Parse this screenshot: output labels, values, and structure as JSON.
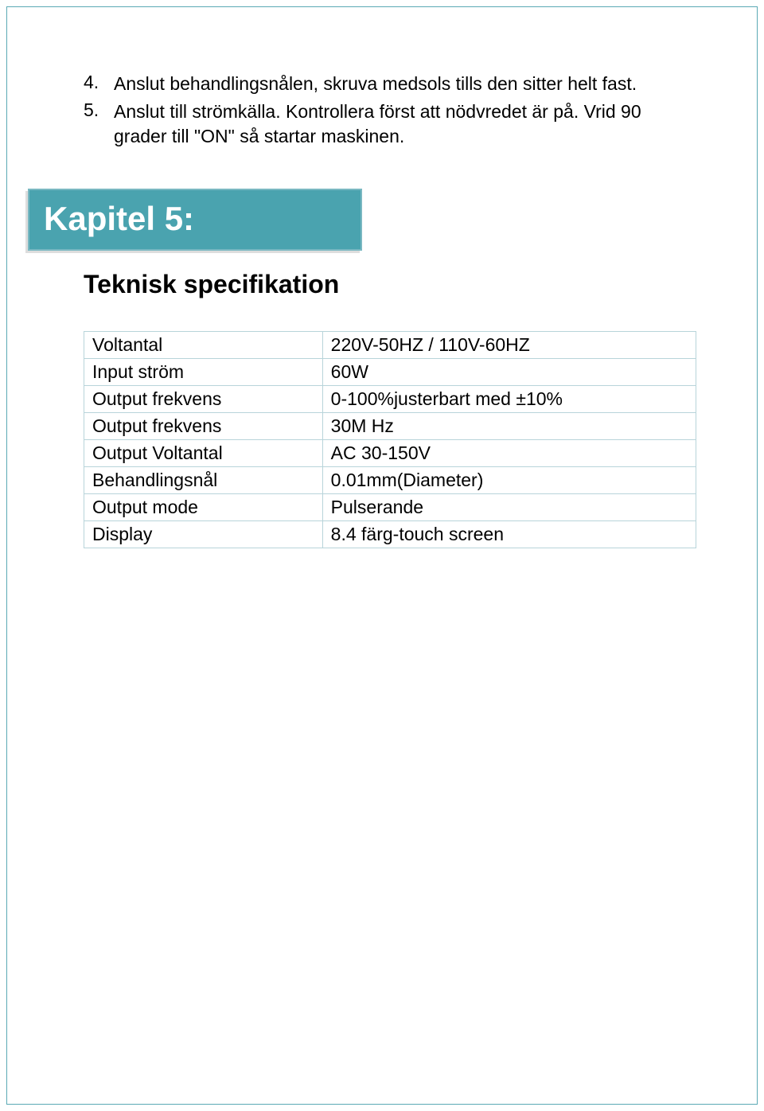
{
  "page": {
    "border_color": "#5aa9b5",
    "background_color": "#ffffff"
  },
  "list_items": [
    {
      "num": "4.",
      "text": "Anslut behandlingsnålen, skruva medsols tills den sitter helt fast."
    },
    {
      "num": "5.",
      "text": "Anslut till strömkälla. Kontrollera först att nödvredet är på. Vrid 90 grader till \"ON\" så startar maskinen."
    }
  ],
  "chapter": {
    "label": "Kapitel 5:",
    "bg_color": "#4aa3af",
    "border_color": "#7ab8c2",
    "text_color": "#ffffff",
    "fontsize": 42
  },
  "section": {
    "title": "Teknisk specifikation",
    "fontsize": 32
  },
  "spec_table": {
    "border_color": "#b8d4da",
    "text_color": "#000000",
    "cell_fontsize": 23,
    "label_col_width": 300,
    "value_col_width": 470,
    "rows": [
      {
        "label": "Voltantal",
        "value": "220V-50HZ / 110V-60HZ"
      },
      {
        "label": "Input ström",
        "value": "60W"
      },
      {
        "label": "Output frekvens",
        "value": "0-100%justerbart med ±10%"
      },
      {
        "label": "Output frekvens",
        "value": "30M Hz"
      },
      {
        "label": "Output Voltantal",
        "value": "AC 30-150V"
      },
      {
        "label": "Behandlingsnål",
        "value": "0.01mm(Diameter)"
      },
      {
        "label": "Output mode",
        "value": "Pulserande"
      },
      {
        "label": "Display",
        "value": "8.4 färg-touch screen"
      }
    ]
  }
}
